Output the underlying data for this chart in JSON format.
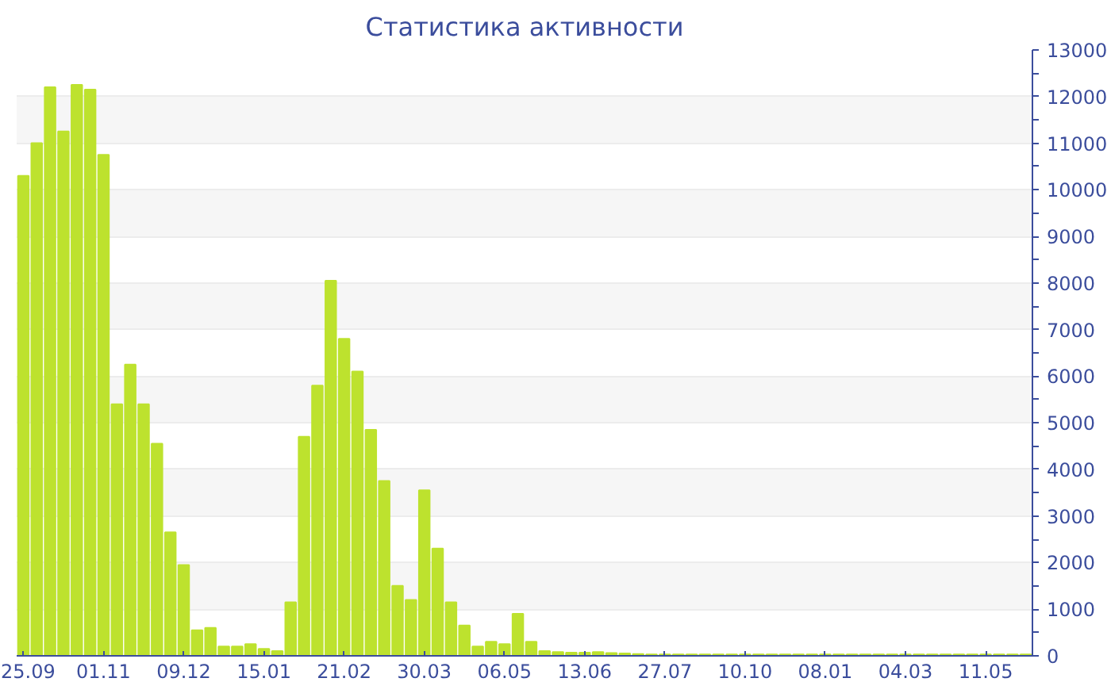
{
  "chart_data": {
    "type": "bar",
    "title": "Статистика активности",
    "categories": [
      "25.09",
      null,
      null,
      null,
      null,
      null,
      "01.11",
      null,
      null,
      null,
      null,
      null,
      "09.12",
      null,
      null,
      null,
      null,
      null,
      "15.01",
      null,
      null,
      null,
      null,
      null,
      "21.02",
      null,
      null,
      null,
      null,
      null,
      "30.03",
      null,
      null,
      null,
      null,
      null,
      "06.05",
      null,
      null,
      null,
      null,
      null,
      "13.06",
      null,
      null,
      null,
      null,
      null,
      "27.07",
      null,
      null,
      null,
      null,
      null,
      "10.10",
      null,
      null,
      null,
      null,
      null,
      "08.01",
      null,
      null,
      null,
      null,
      null,
      "04.03",
      null,
      null,
      null,
      null,
      null,
      "11.05",
      null,
      null,
      null
    ],
    "values": [
      10300,
      11000,
      12200,
      11250,
      12250,
      12150,
      10750,
      5400,
      6250,
      5400,
      4550,
      2650,
      1950,
      550,
      600,
      200,
      200,
      250,
      150,
      100,
      1150,
      4700,
      5800,
      8050,
      6800,
      6100,
      4850,
      3750,
      1500,
      1200,
      3550,
      2300,
      1150,
      650,
      200,
      300,
      250,
      900,
      300,
      100,
      80,
      70,
      70,
      80,
      60,
      50,
      40,
      30,
      30,
      30,
      30,
      30,
      30,
      30,
      30,
      30,
      30,
      30,
      30,
      30,
      30,
      30,
      30,
      30,
      30,
      30,
      30,
      30,
      30,
      30,
      30,
      30,
      30,
      30,
      30,
      30
    ],
    "color": "#bde22e",
    "ylim": [
      0,
      13000
    ],
    "yticks": [
      0,
      1000,
      2000,
      3000,
      4000,
      5000,
      6000,
      7000,
      8000,
      9000,
      10000,
      11000,
      12000,
      13000
    ],
    "grid": "y"
  }
}
